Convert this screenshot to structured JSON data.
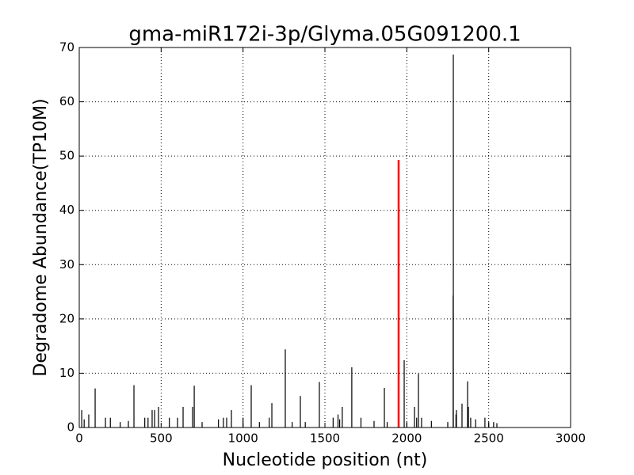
{
  "chart_data": {
    "type": "stem",
    "title": "gma-miR172i-3p/Glyma.05G091200.1",
    "x_label": "Nucleotide position (nt)",
    "y_label": "Degradome Abundance(TP10M)",
    "xlim": [
      0,
      3000
    ],
    "ylim": [
      0,
      70
    ],
    "xticks": [
      0,
      500,
      1000,
      1500,
      2000,
      2500,
      3000
    ],
    "yticks": [
      0,
      10,
      20,
      30,
      40,
      50,
      60,
      70
    ],
    "grid": true,
    "color": "#000000",
    "x": [
      15,
      30,
      58,
      97,
      160,
      190,
      250,
      300,
      334,
      400,
      420,
      445,
      460,
      484,
      550,
      600,
      634,
      692,
      702,
      750,
      850,
      880,
      900,
      929,
      1000,
      1050,
      1100,
      1160,
      1176,
      1258,
      1300,
      1350,
      1380,
      1466,
      1550,
      1580,
      1590,
      1606,
      1664,
      1720,
      1800,
      1863,
      1880,
      1984,
      2000,
      2047,
      2060,
      2071,
      2090,
      2150,
      2250,
      2283,
      2284,
      2300,
      2303,
      2337,
      2371,
      2376,
      2390,
      2420,
      2477,
      2500,
      2530,
      2550
    ],
    "values": [
      3.2,
      1.5,
      2.4,
      7.2,
      1.8,
      1.8,
      1,
      1.2,
      7.8,
      1.8,
      1.8,
      3.2,
      3.2,
      3.8,
      1.8,
      1.8,
      3.8,
      3.8,
      7.7,
      1,
      1.5,
      1.8,
      1.8,
      3.2,
      1.8,
      7.8,
      1,
      1.8,
      4.5,
      14.4,
      1,
      5.8,
      1,
      8.4,
      1.8,
      2.4,
      1.5,
      3.8,
      11.1,
      1.8,
      1.2,
      7.3,
      1,
      12.4,
      1,
      3.8,
      1.8,
      9.9,
      1.8,
      1.2,
      1,
      24.3,
      68.7,
      2.4,
      3.2,
      4.4,
      8.5,
      3.8,
      1.8,
      1.5,
      1.8,
      1,
      1,
      0.8
    ],
    "highlight": {
      "x": 1950,
      "value": 49.3,
      "color": "#ff0000"
    }
  }
}
